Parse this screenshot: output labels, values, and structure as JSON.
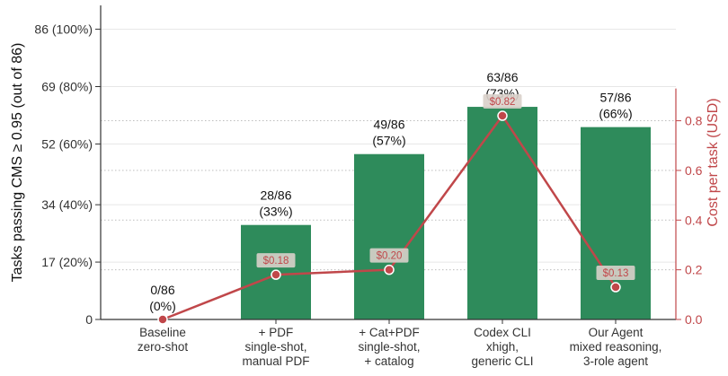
{
  "chart_data": {
    "type": "bar",
    "categories": [
      [
        "Baseline",
        "zero-shot"
      ],
      [
        "+ PDF",
        "single-shot,",
        "manual PDF"
      ],
      [
        "+ Cat+PDF",
        "single-shot,",
        "+ catalog"
      ],
      [
        "Codex CLI",
        "xhigh,",
        "generic CLI"
      ],
      [
        "Our Agent",
        "mixed reasoning,",
        "3-role agent"
      ]
    ],
    "values": [
      0,
      28,
      49,
      63,
      57
    ],
    "bar_labels": [
      [
        "0/86",
        "(0%)"
      ],
      [
        "28/86",
        "(33%)"
      ],
      [
        "49/86",
        "(57%)"
      ],
      [
        "63/86",
        "(73%)"
      ],
      [
        "57/86",
        "(66%)"
      ]
    ],
    "ylabel": "Tasks passing CMS ≥ 0.95  (out of 86)",
    "ylim": [
      0,
      92
    ],
    "yticks": [
      {
        "value": 0,
        "label": "0"
      },
      {
        "value": 17,
        "label": "17 (20%)"
      },
      {
        "value": 34,
        "label": "34 (40%)"
      },
      {
        "value": 52,
        "label": "52 (60%)"
      },
      {
        "value": 69,
        "label": "69 (80%)"
      },
      {
        "value": 86,
        "label": "86 (100%)"
      }
    ],
    "secondary": {
      "type": "line",
      "ylabel": "Cost per task (USD)",
      "values": [
        0.0,
        0.18,
        0.2,
        0.82,
        0.13
      ],
      "value_labels": [
        null,
        "$0.18",
        "$0.20",
        "$0.82",
        "$0.13"
      ],
      "yticks": [
        "0.0",
        "0.2",
        "0.4",
        "0.6",
        "0.8"
      ],
      "ylim": [
        0,
        1.25
      ]
    },
    "grid": true,
    "colors": {
      "bar": "#2e8b5b",
      "line": "#c0474a",
      "axis": "#333333",
      "grid": "#e6e6e6",
      "cost_label_bg": "#d9d0ca"
    }
  }
}
